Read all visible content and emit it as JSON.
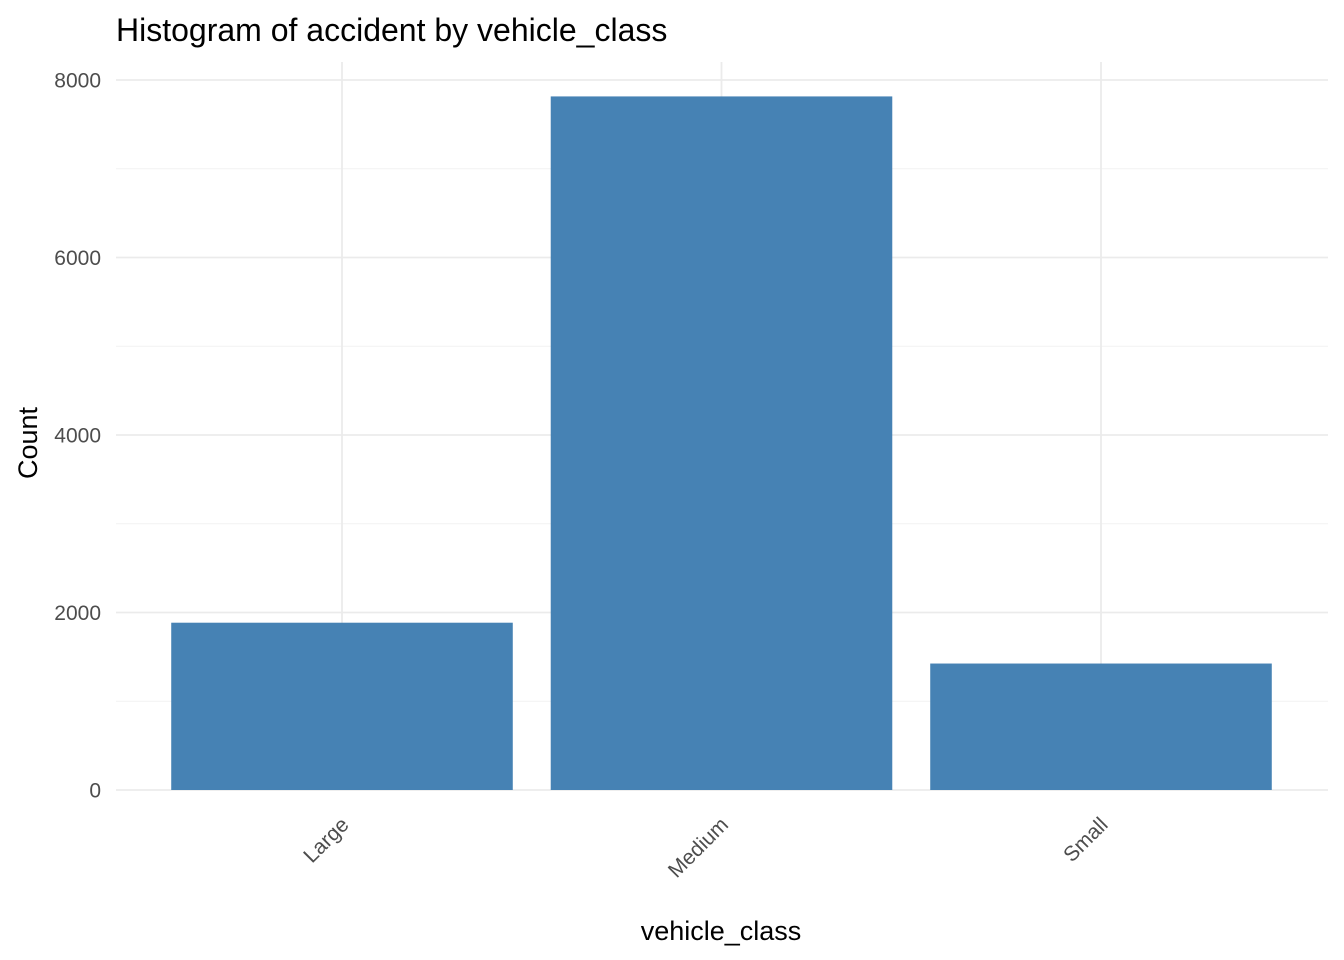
{
  "chart_data": {
    "type": "bar",
    "title": "Histogram of accident by vehicle_class",
    "xlabel": "vehicle_class",
    "ylabel": "Count",
    "categories": [
      "Large",
      "Medium",
      "Small"
    ],
    "values": [
      1885,
      7815,
      1425
    ],
    "ylim": [
      0,
      8000
    ],
    "yticks": [
      "0",
      "2000",
      "4000",
      "6000",
      "8000"
    ],
    "grid": true,
    "legend": "none",
    "bar_color": "#4682b4"
  }
}
